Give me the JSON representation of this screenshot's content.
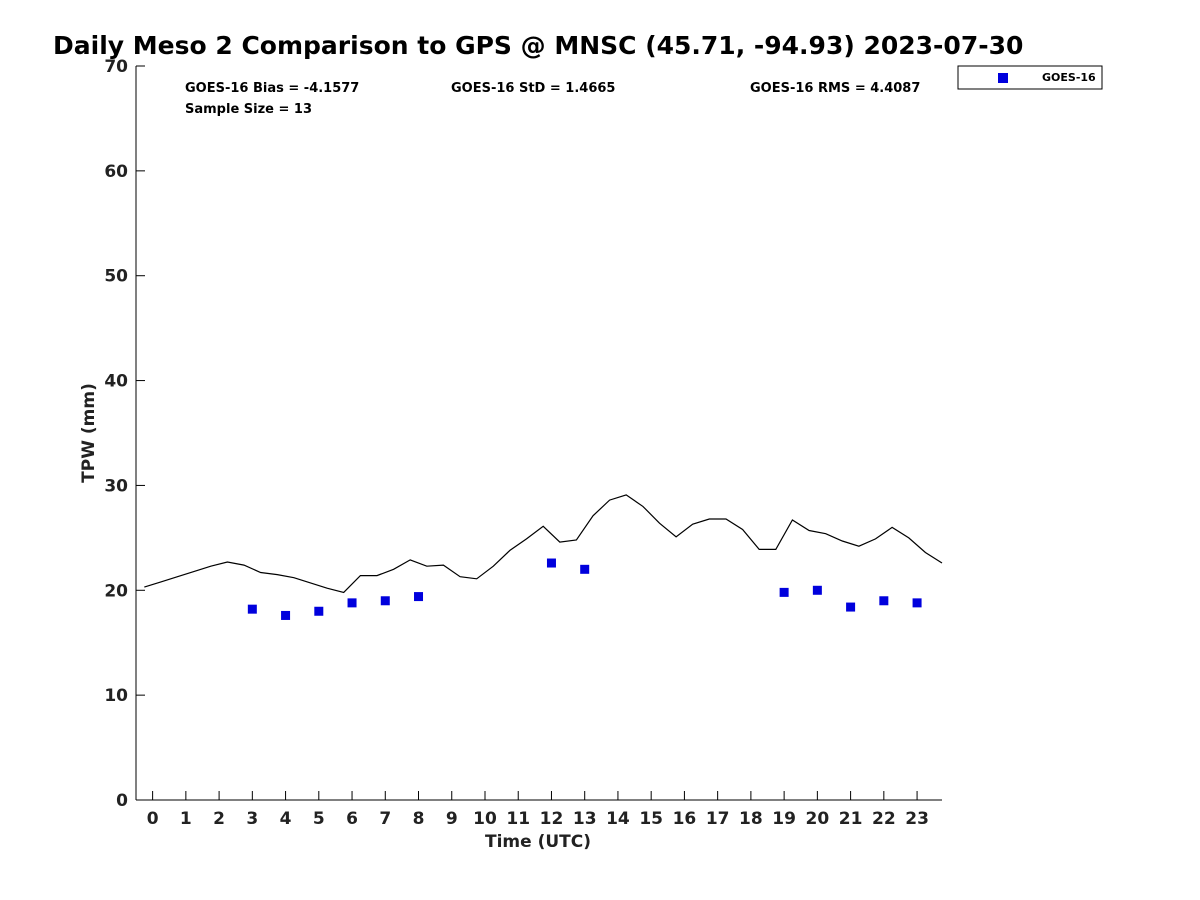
{
  "chart_data": {
    "type": "scatter",
    "title": "Daily Meso 2 Comparison to GPS @ MNSC (45.71, -94.93) 2023-07-30",
    "xlabel": "Time (UTC)",
    "ylabel": "TPW (mm)",
    "xlim": [
      -0.5,
      23.75
    ],
    "ylim": [
      0,
      70
    ],
    "x_ticks": [
      "0",
      "1",
      "2",
      "3",
      "4",
      "5",
      "6",
      "7",
      "8",
      "9",
      "10",
      "11",
      "12",
      "13",
      "14",
      "15",
      "16",
      "17",
      "18",
      "19",
      "20",
      "21",
      "22",
      "23"
    ],
    "y_ticks": [
      "0",
      "10",
      "20",
      "30",
      "40",
      "50",
      "60",
      "70"
    ],
    "grid": false,
    "legend_position": "top-right, outside plot",
    "stats": {
      "bias": "GOES-16 Bias = -4.1577",
      "std": "GOES-16 StD = 1.4665",
      "rms": "GOES-16 RMS = 4.4087",
      "sample_size": "Sample Size = 13"
    },
    "gps_line": {
      "color": "#000000",
      "x": [
        -0.25,
        0.25,
        0.75,
        1.25,
        1.75,
        2.25,
        2.75,
        3.25,
        3.75,
        4.25,
        4.75,
        5.25,
        5.75,
        6.25,
        6.75,
        7.25,
        7.75,
        8.25,
        8.75,
        9.25,
        9.75,
        10.25,
        10.75,
        11.25,
        11.75,
        12.25,
        12.75,
        13.25,
        13.75,
        14.25,
        14.75,
        15.25,
        15.75,
        16.25,
        16.75,
        17.25,
        17.75,
        18.25,
        18.75,
        19.25,
        19.75,
        20.25,
        20.75,
        21.25,
        21.75,
        22.25,
        22.75,
        23.25,
        23.75
      ],
      "y": [
        20.3,
        20.8,
        21.3,
        21.8,
        22.3,
        22.7,
        22.4,
        21.7,
        21.5,
        21.2,
        20.7,
        20.2,
        19.8,
        21.4,
        21.4,
        22.0,
        22.9,
        22.3,
        22.4,
        21.3,
        21.1,
        22.3,
        23.8,
        24.9,
        26.1,
        24.6,
        24.8,
        27.1,
        28.6,
        29.1,
        28.0,
        26.4,
        25.1,
        26.3,
        26.8,
        26.8,
        25.8,
        23.9,
        23.9,
        26.7,
        25.7,
        25.4,
        24.7,
        24.2,
        24.9,
        26.0,
        25.0,
        23.6,
        22.6
      ]
    },
    "series": [
      {
        "name": "GOES-16",
        "color": "#0000dd",
        "marker": "square",
        "x": [
          3,
          4,
          5,
          6,
          7,
          8,
          12,
          13,
          19,
          20,
          21,
          22,
          23
        ],
        "y": [
          18.2,
          17.6,
          18.0,
          18.8,
          19.0,
          19.4,
          22.6,
          22.0,
          19.8,
          20.0,
          18.4,
          19.0,
          18.8
        ]
      }
    ]
  }
}
